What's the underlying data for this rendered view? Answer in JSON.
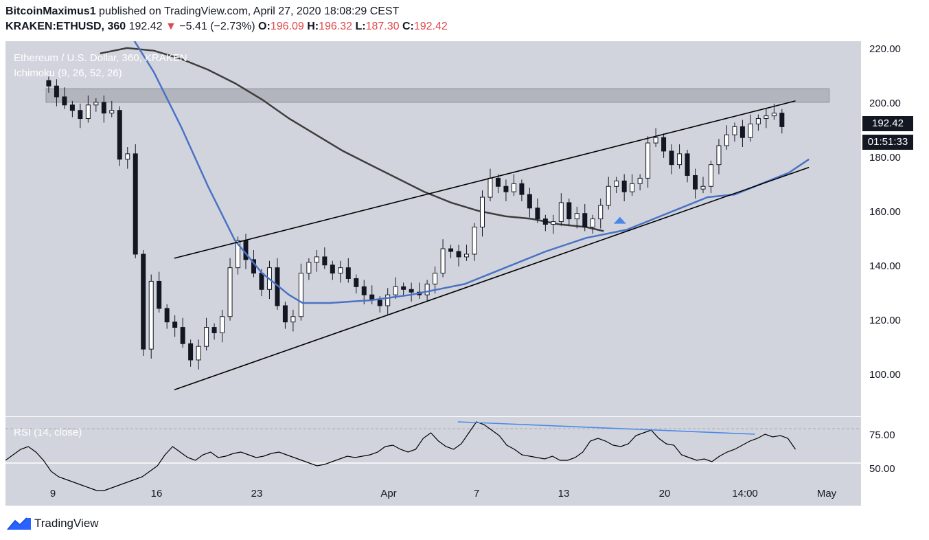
{
  "header": {
    "author": "BitcoinMaximus1",
    "published_text": "published on TradingView.com, April 27, 2020 18:08:29 CEST",
    "symbol": "KRAKEN:ETHUSD, 360",
    "last": "192.42",
    "change_arrow": "▼",
    "change": "−5.41 (−2.73%)",
    "o_label": "O:",
    "o_value": "196.09",
    "h_label": "H:",
    "h_value": "196.32",
    "l_label": "L:",
    "l_value": "187.30",
    "c_label": "C:",
    "c_value": "192.42"
  },
  "legend": {
    "title": "Ethereum / U.S. Dollar, 360, KRAKEN",
    "indicator": "Ichimoku (9, 26, 52, 26)",
    "rsi": "RSI (14, close)"
  },
  "price_axis": [
    "220.00",
    "200.00",
    "180.00",
    "160.00",
    "140.00",
    "120.00",
    "100.00"
  ],
  "price_tag": "192.42",
  "timer_tag": "01:51:33",
  "rsi_axis": [
    "75.00",
    "50.00"
  ],
  "x_axis": [
    "9",
    "16",
    "23",
    "Apr",
    "7",
    "13",
    "20",
    "14:00",
    "May"
  ],
  "footer": {
    "brand": "TradingView",
    "logo_icon": "tradingview-logo-icon"
  },
  "colors": {
    "plot_bg": "#d1d4dc",
    "candle": "#131722",
    "blue_line": "#4a72c4",
    "dark_ma": "#3d3d3d",
    "resistance_zone": "#b2b5be",
    "rsi_trend": "#4a88e8",
    "negative": "#e0474c"
  },
  "chart_data": [
    {
      "type": "line",
      "title": "Ethereum / U.S. Dollar, 360, KRAKEN",
      "ylim": [
        88,
        223
      ],
      "x_ticks": [
        "9",
        "16",
        "23",
        "Apr",
        "7",
        "13",
        "20",
        "14:00",
        "May"
      ],
      "y_ticks": [
        100,
        120,
        140,
        160,
        180,
        200,
        220
      ],
      "close_series": [
        207,
        203,
        200,
        198,
        195,
        200,
        201,
        197,
        198,
        180,
        182,
        145,
        110,
        135,
        125,
        120,
        118,
        112,
        106,
        111,
        118,
        116,
        122,
        140,
        150,
        143,
        138,
        132,
        140,
        126,
        120,
        122,
        138,
        142,
        144,
        141,
        138,
        140,
        136,
        133,
        130,
        128,
        126,
        130,
        133,
        132,
        131,
        130,
        134,
        138,
        147,
        146,
        144,
        145,
        155,
        166,
        173,
        170,
        168,
        171,
        167,
        162,
        158,
        156,
        157,
        164,
        158,
        160,
        155,
        158,
        163,
        170,
        172,
        168,
        171,
        173,
        186,
        188,
        183,
        178,
        182,
        174,
        169,
        170,
        178,
        185,
        189,
        192,
        188,
        193,
        195,
        196,
        197,
        192
      ],
      "ma_blue": [
        [
          9.5,
          224
        ],
        [
          11,
          212
        ],
        [
          13,
          192
        ],
        [
          15,
          170
        ],
        [
          17,
          150
        ],
        [
          19,
          138
        ],
        [
          21,
          130
        ],
        [
          22,
          127
        ],
        [
          24,
          127
        ],
        [
          27,
          128
        ],
        [
          30,
          130
        ],
        [
          32,
          132
        ],
        [
          34,
          134
        ],
        [
          37,
          140
        ],
        [
          40,
          146
        ],
        [
          43,
          151
        ],
        [
          46,
          154
        ],
        [
          48,
          158
        ],
        [
          50,
          162
        ],
        [
          52,
          166
        ],
        [
          54,
          167
        ],
        [
          56,
          171
        ],
        [
          58,
          175
        ],
        [
          59.5,
          180
        ]
      ],
      "ma_dark": [
        [
          7,
          219
        ],
        [
          9,
          221
        ],
        [
          11,
          220
        ],
        [
          13,
          217
        ],
        [
          15,
          213
        ],
        [
          17,
          208
        ],
        [
          19,
          202
        ],
        [
          21,
          195
        ],
        [
          23,
          189
        ],
        [
          25,
          183
        ],
        [
          27,
          178
        ],
        [
          29,
          173
        ],
        [
          31,
          168
        ],
        [
          33,
          164
        ],
        [
          35,
          161
        ],
        [
          37,
          159
        ],
        [
          39,
          158
        ],
        [
          41,
          156
        ],
        [
          43,
          155
        ],
        [
          44.3,
          153.5
        ]
      ],
      "channel_upper": [
        [
          12.5,
          143.5
        ],
        [
          58.5,
          201.5
        ]
      ],
      "channel_lower": [
        [
          12.5,
          95
        ],
        [
          59.5,
          177
        ]
      ],
      "resistance_zone": [
        201,
        206
      ],
      "marker": {
        "shape": "triangle-up",
        "x": 45.5,
        "y": 157.5
      }
    },
    {
      "type": "line",
      "title": "RSI (14, close)",
      "ylim": [
        42,
        82
      ],
      "y_ticks": [
        50,
        75
      ],
      "series": [
        52,
        56,
        60,
        62,
        58,
        52,
        44,
        40,
        38,
        36,
        34,
        32,
        30,
        30,
        32,
        34,
        36,
        38,
        40,
        44,
        48,
        56,
        62,
        58,
        54,
        52,
        56,
        58,
        54,
        55,
        57,
        58,
        56,
        54,
        55,
        57,
        58,
        56,
        54,
        52,
        50,
        48,
        49,
        51,
        53,
        55,
        54,
        55,
        56,
        58,
        62,
        63,
        60,
        58,
        60,
        68,
        72,
        66,
        62,
        60,
        64,
        72,
        80,
        78,
        74,
        70,
        63,
        60,
        56,
        55,
        54,
        53,
        55,
        52,
        52,
        54,
        58,
        66,
        68,
        66,
        63,
        62,
        64,
        70,
        72,
        74,
        68,
        64,
        63,
        56,
        54,
        52,
        53,
        51,
        55,
        58,
        60,
        63,
        66,
        68,
        71,
        69,
        70,
        68,
        60
      ],
      "trend_line": [
        [
          33.5,
          80
        ],
        [
          55.5,
          71
        ]
      ]
    }
  ]
}
